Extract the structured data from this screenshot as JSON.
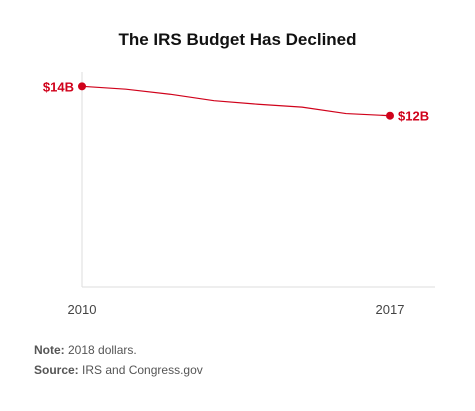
{
  "chart_data": {
    "type": "line",
    "title": "The IRS Budget Has Declined",
    "x": [
      2010,
      2011,
      2012,
      2013,
      2014,
      2015,
      2016,
      2017
    ],
    "series": [
      {
        "values": [
          14.0,
          13.8,
          13.45,
          13.0,
          12.75,
          12.55,
          12.1,
          11.95
        ]
      }
    ],
    "x_tick_labels": [
      "2010",
      "2017"
    ],
    "data_labels": [
      {
        "index": 0,
        "text": "$14B"
      },
      {
        "index": 7,
        "text": "$12B"
      }
    ],
    "ylim": [
      0,
      15
    ],
    "xlim": [
      2010,
      2017
    ],
    "grid": false,
    "line_color": "#d0021b"
  },
  "notes": {
    "note_label": "Note:",
    "note_text": " 2018 dollars.",
    "source_label": "Source:",
    "source_text": " IRS and Congress.gov"
  }
}
